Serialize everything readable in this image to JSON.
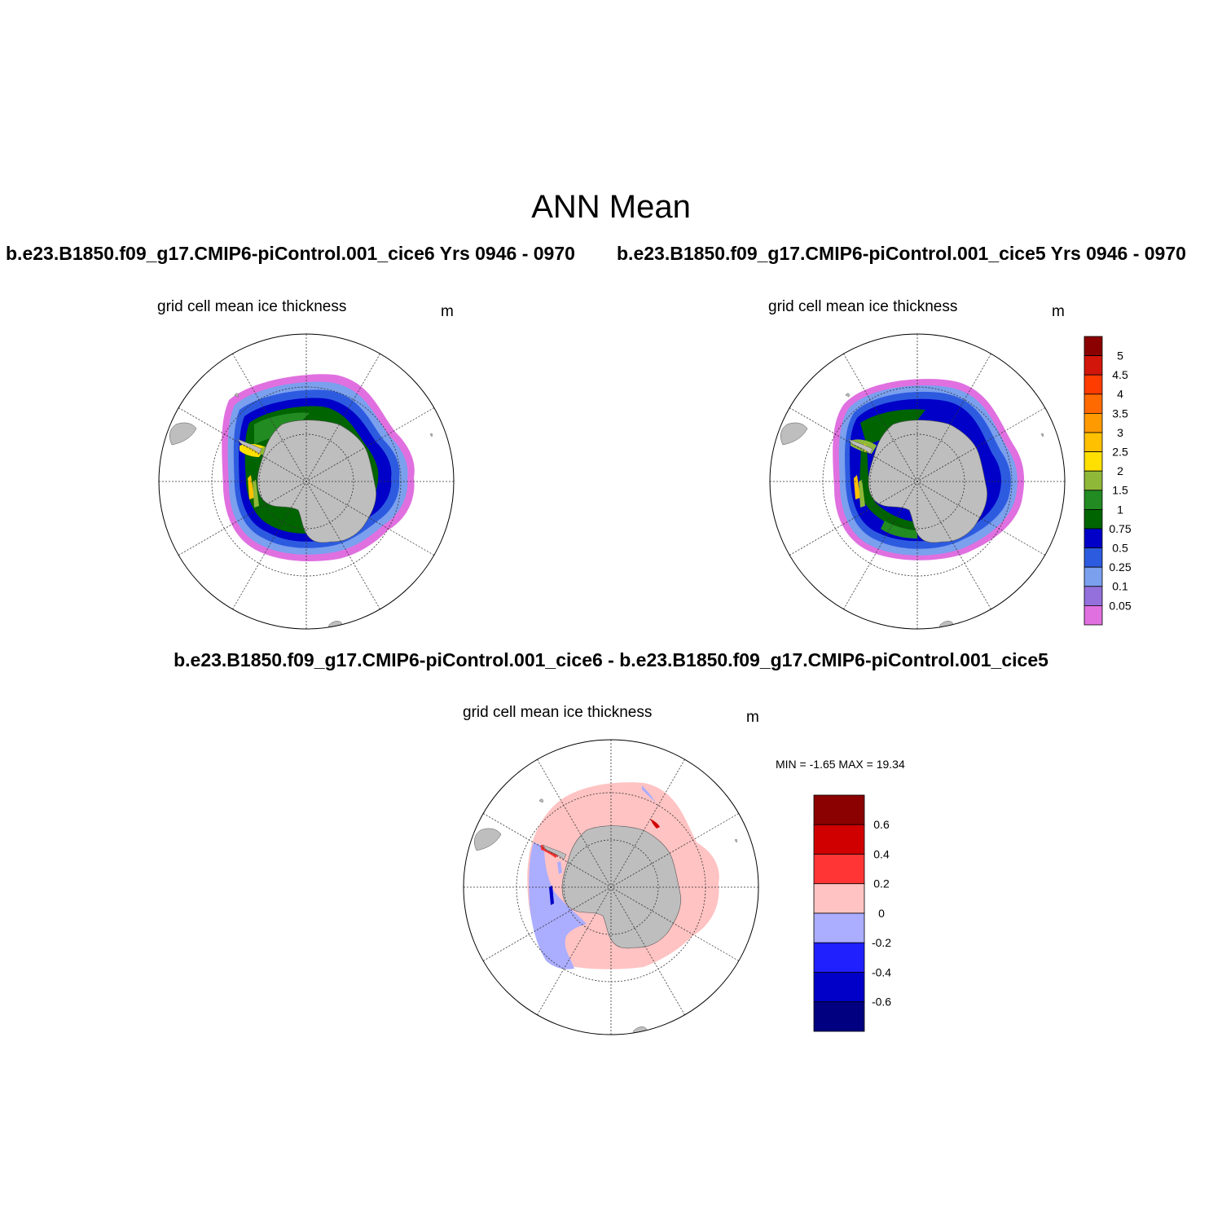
{
  "main_title": "ANN Mean",
  "panels": [
    {
      "case_title": "b.e23.B1850.f09_g17.CMIP6-piControl.001_cice6  Yrs 0946 - 0970",
      "variable_title": "grid cell mean ice thickness",
      "units": "m"
    },
    {
      "case_title": "b.e23.B1850.f09_g17.CMIP6-piControl.001_cice5  Yrs 0946 - 0970",
      "variable_title": "grid cell mean ice thickness",
      "units": "m"
    },
    {
      "case_title": "b.e23.B1850.f09_g17.CMIP6-piControl.001_cice6 - b.e23.B1850.f09_g17.CMIP6-piControl.001_cice5",
      "variable_title": "grid cell mean ice thickness",
      "units": "m",
      "min_max_text": "MIN =  -1.65 MAX =  19.34"
    }
  ],
  "colorbar_thickness": {
    "labels": [
      "5",
      "4.5",
      "4",
      "3.5",
      "3",
      "2.5",
      "2",
      "1.5",
      "1",
      "0.75",
      "0.5",
      "0.25",
      "0.1",
      "0.05"
    ],
    "colors": [
      "#8b0000",
      "#d2160b",
      "#ff3c00",
      "#ff6a00",
      "#ff9a00",
      "#ffc000",
      "#ffe000",
      "#90b838",
      "#228b22",
      "#006400",
      "#0000c8",
      "#2d5be0",
      "#7aa0ee",
      "#9370db",
      "#e070e0"
    ]
  },
  "colorbar_diff": {
    "labels": [
      "0.6",
      "0.4",
      "0.2",
      "0",
      "-0.2",
      "-0.4",
      "-0.6"
    ],
    "colors": [
      "#8b0000",
      "#d00000",
      "#ff3535",
      "#ffc3c3",
      "#abadff",
      "#2020ff",
      "#0000c8",
      "#000080"
    ]
  },
  "map_colors": {
    "land": "#bebebe",
    "diff_positive": "#ffc3c3",
    "diff_negative": "#abadff"
  }
}
